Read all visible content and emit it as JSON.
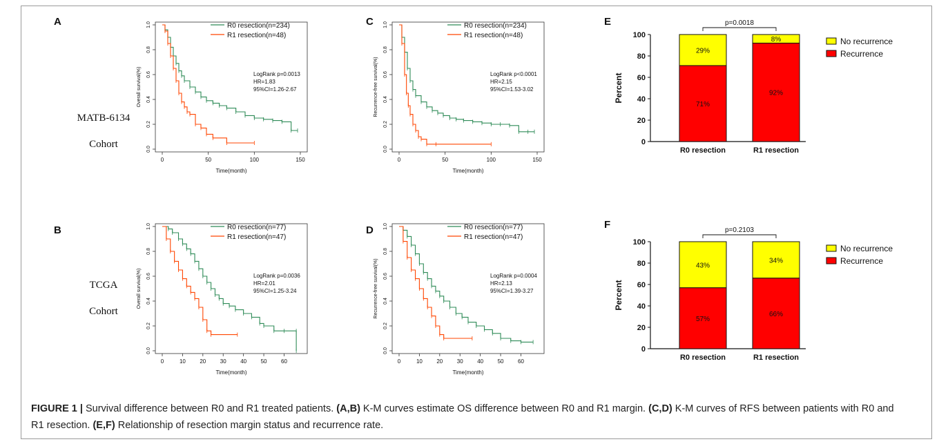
{
  "cohorts": [
    {
      "line1": "MATB-6134",
      "line2": "Cohort"
    },
    {
      "line1": "TCGA",
      "line2": "Cohort"
    }
  ],
  "caption": {
    "label": "FIGURE 1 |",
    "t1": " Survival difference between  R0 and R1 treated patients. ",
    "b1": "(A,B)",
    "t2": " K-M curves estimate OS difference between R0 and R1 margin. ",
    "b2": "(C,D)",
    "t3": " K-M curves of RFS between patients with R0 and R1 resection. ",
    "b3": "(E,F)",
    "t4": " Relationship of resection margin status and recurrence rate."
  },
  "colors": {
    "r0": "#2e8b57",
    "r1": "#ff4500",
    "recurrence": "#ff0000",
    "no_recurrence": "#ffff00"
  },
  "chart_data": [
    {
      "panel": "A",
      "type": "line",
      "xlabel": "Time(month)",
      "ylabel": "Overall survival(%)",
      "xlim": [
        0,
        150
      ],
      "xticks": [
        0,
        50,
        100,
        150
      ],
      "ylim": [
        0,
        1
      ],
      "yticks": [
        "0.0",
        "0.2",
        "0.4",
        "0.6",
        "0.8",
        "1.0"
      ],
      "stats": [
        "LogRank p=0.0013",
        "HR=1.83",
        "95%CI=1.26-2.67"
      ],
      "series": [
        {
          "name": "R0 resection(n=234)",
          "color": "#2e8b57",
          "x": [
            0,
            3,
            6,
            9,
            12,
            15,
            18,
            21,
            24,
            30,
            36,
            42,
            48,
            55,
            62,
            70,
            80,
            90,
            100,
            110,
            120,
            130,
            140,
            147
          ],
          "y": [
            1.0,
            0.96,
            0.9,
            0.82,
            0.75,
            0.69,
            0.63,
            0.59,
            0.55,
            0.5,
            0.46,
            0.42,
            0.39,
            0.37,
            0.35,
            0.33,
            0.3,
            0.27,
            0.25,
            0.24,
            0.23,
            0.22,
            0.15,
            0.15
          ]
        },
        {
          "name": "R1 resection(n=48)",
          "color": "#ff4500",
          "x": [
            0,
            3,
            6,
            9,
            12,
            15,
            18,
            21,
            24,
            27,
            30,
            36,
            42,
            48,
            55,
            70,
            100
          ],
          "y": [
            1.0,
            0.95,
            0.85,
            0.75,
            0.65,
            0.55,
            0.45,
            0.38,
            0.34,
            0.3,
            0.28,
            0.2,
            0.17,
            0.12,
            0.09,
            0.05,
            0.05
          ]
        }
      ]
    },
    {
      "panel": "C",
      "type": "line",
      "xlabel": "Time(month)",
      "ylabel": "Recurrence-free survival(%)",
      "xlim": [
        0,
        150
      ],
      "xticks": [
        0,
        50,
        100,
        150
      ],
      "ylim": [
        0,
        1
      ],
      "yticks": [
        "0.0",
        "0.2",
        "0.4",
        "0.6",
        "0.8",
        "1.0"
      ],
      "stats": [
        "LogRank p<0.0001",
        "HR=2.15",
        "95%CI=1.53-3.02"
      ],
      "series": [
        {
          "name": "R0 resection(n=234)",
          "color": "#2e8b57",
          "x": [
            0,
            3,
            6,
            9,
            12,
            15,
            18,
            24,
            30,
            36,
            42,
            48,
            55,
            62,
            70,
            80,
            90,
            100,
            110,
            120,
            130,
            140,
            147
          ],
          "y": [
            1.0,
            0.9,
            0.78,
            0.65,
            0.55,
            0.48,
            0.43,
            0.38,
            0.34,
            0.31,
            0.29,
            0.27,
            0.25,
            0.24,
            0.23,
            0.22,
            0.21,
            0.2,
            0.2,
            0.19,
            0.14,
            0.14,
            0.14
          ]
        },
        {
          "name": "R1 resection(n=48)",
          "color": "#ff4500",
          "x": [
            0,
            3,
            6,
            8,
            10,
            12,
            15,
            18,
            21,
            24,
            30,
            40,
            100
          ],
          "y": [
            1.0,
            0.85,
            0.6,
            0.45,
            0.35,
            0.28,
            0.2,
            0.15,
            0.1,
            0.08,
            0.04,
            0.04,
            0.04
          ]
        }
      ]
    },
    {
      "panel": "E",
      "type": "bar",
      "ylabel": "Percent",
      "ylim": [
        0,
        100
      ],
      "yticks": [
        0,
        20,
        40,
        60,
        80,
        100
      ],
      "categories": [
        "R0 resection",
        "R1 resection"
      ],
      "pvalue": "p=0.0018",
      "legend": [
        "No recurrence",
        "Recurrence"
      ],
      "series": [
        {
          "name": "Recurrence",
          "color": "#ff0000",
          "values": [
            71,
            92
          ],
          "labels": [
            "71%",
            "92%"
          ]
        },
        {
          "name": "No recurrence",
          "color": "#ffff00",
          "values": [
            29,
            8
          ],
          "labels": [
            "29%",
            "8%"
          ]
        }
      ]
    },
    {
      "panel": "B",
      "type": "line",
      "xlabel": "Time(month)",
      "ylabel": "Overall survival(%)",
      "xlim": [
        0,
        68
      ],
      "xticks": [
        0,
        10,
        20,
        30,
        40,
        50,
        60
      ],
      "ylim": [
        0,
        1
      ],
      "yticks": [
        "0.0",
        "0.2",
        "0.4",
        "0.6",
        "0.8",
        "1.0"
      ],
      "stats": [
        "LogRank p=0.0036",
        "HR=2.01",
        "95%CI=1.25-3.24"
      ],
      "series": [
        {
          "name": "R0 resection(n=77)",
          "color": "#2e8b57",
          "x": [
            0,
            3,
            5,
            8,
            10,
            12,
            14,
            16,
            18,
            20,
            22,
            24,
            26,
            28,
            30,
            33,
            36,
            40,
            44,
            48,
            50,
            55,
            60,
            66,
            66
          ],
          "y": [
            1.0,
            0.98,
            0.95,
            0.9,
            0.86,
            0.82,
            0.78,
            0.72,
            0.66,
            0.6,
            0.55,
            0.5,
            0.45,
            0.42,
            0.38,
            0.36,
            0.33,
            0.3,
            0.27,
            0.22,
            0.2,
            0.16,
            0.16,
            0.16,
            0.0
          ]
        },
        {
          "name": "R1 resection(n=47)",
          "color": "#ff4500",
          "x": [
            0,
            2,
            4,
            6,
            8,
            10,
            12,
            14,
            16,
            18,
            20,
            22,
            24,
            37
          ],
          "y": [
            1.0,
            0.9,
            0.8,
            0.72,
            0.65,
            0.58,
            0.52,
            0.47,
            0.42,
            0.35,
            0.25,
            0.16,
            0.13,
            0.13
          ]
        }
      ]
    },
    {
      "panel": "D",
      "type": "line",
      "xlabel": "Time(month)",
      "ylabel": "Recurrence-free survival(%)",
      "xlim": [
        0,
        68
      ],
      "xticks": [
        0,
        10,
        20,
        30,
        40,
        50,
        60
      ],
      "ylim": [
        0,
        1
      ],
      "yticks": [
        "0.0",
        "0.2",
        "0.4",
        "0.6",
        "0.8",
        "1.0"
      ],
      "stats": [
        "LogRank p=0.0004",
        "HR=2.13",
        "95%CI=1.39-3.27"
      ],
      "series": [
        {
          "name": "R0 resection(n=77)",
          "color": "#2e8b57",
          "x": [
            0,
            2,
            4,
            6,
            8,
            10,
            12,
            14,
            16,
            18,
            20,
            22,
            25,
            28,
            31,
            34,
            38,
            42,
            46,
            50,
            55,
            60,
            66
          ],
          "y": [
            1.0,
            0.97,
            0.92,
            0.85,
            0.78,
            0.7,
            0.63,
            0.58,
            0.52,
            0.48,
            0.44,
            0.4,
            0.35,
            0.3,
            0.27,
            0.23,
            0.2,
            0.17,
            0.14,
            0.1,
            0.08,
            0.07,
            0.07
          ]
        },
        {
          "name": "R1 resection(n=47)",
          "color": "#ff4500",
          "x": [
            0,
            2,
            4,
            6,
            8,
            10,
            12,
            14,
            16,
            18,
            20,
            22,
            36
          ],
          "y": [
            1.0,
            0.88,
            0.75,
            0.65,
            0.58,
            0.5,
            0.42,
            0.35,
            0.28,
            0.2,
            0.13,
            0.1,
            0.1
          ]
        }
      ]
    },
    {
      "panel": "F",
      "type": "bar",
      "ylabel": "Percent",
      "ylim": [
        0,
        100
      ],
      "yticks": [
        0,
        20,
        40,
        60,
        80,
        100
      ],
      "categories": [
        "R0 resection",
        "R1 resection"
      ],
      "pvalue": "p=0.2103",
      "legend": [
        "No recurrence",
        "Recurrence"
      ],
      "series": [
        {
          "name": "Recurrence",
          "color": "#ff0000",
          "values": [
            57,
            66
          ],
          "labels": [
            "57%",
            "66%"
          ]
        },
        {
          "name": "No recurrence",
          "color": "#ffff00",
          "values": [
            43,
            34
          ],
          "labels": [
            "43%",
            "34%"
          ]
        }
      ]
    }
  ]
}
